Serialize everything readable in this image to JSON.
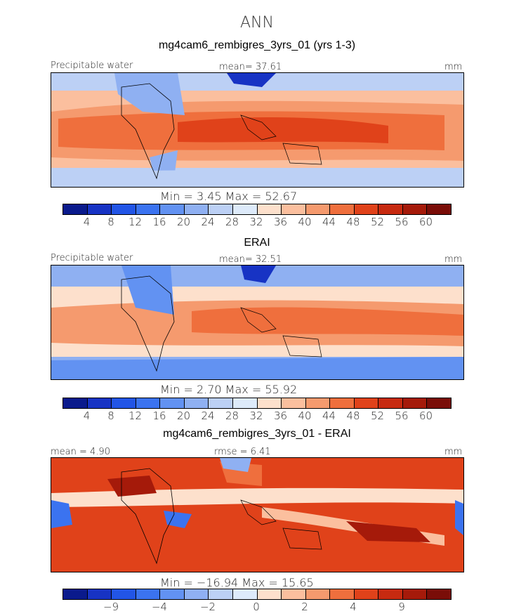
{
  "main_title": "ANN",
  "colors": {
    "abs_scale": [
      "#0a1a8c",
      "#1733c4",
      "#2255e6",
      "#3b73f0",
      "#6292f2",
      "#8fb0f2",
      "#bcd0f5",
      "#ddeafa",
      "#fde0cc",
      "#fbbf9e",
      "#f59a6e",
      "#ef6f3d",
      "#e0421a",
      "#c72a10",
      "#a51a0a",
      "#7a0d08"
    ],
    "diff_scale": [
      "#0a1a8c",
      "#1733c4",
      "#2255e6",
      "#3b73f0",
      "#6292f2",
      "#8fb0f2",
      "#bcd0f5",
      "#ddeafa",
      "#fde0cc",
      "#fbbf9e",
      "#f59a6e",
      "#ef6f3d",
      "#e0421a",
      "#c72a10",
      "#a51a0a",
      "#7a0d08"
    ]
  },
  "panels": [
    {
      "title": "mg4cam6_rembigres_3yrs_01 (yrs 1-3)",
      "left_label": "Precipitable water",
      "center_label": "mean=  37.61",
      "right_label": "mm",
      "stats": "Min =    3.45  Max =   52.67",
      "ticks": [
        "4",
        "8",
        "12",
        "16",
        "20",
        "24",
        "28",
        "32",
        "36",
        "40",
        "44",
        "48",
        "52",
        "56",
        "60"
      ]
    },
    {
      "title": "ERAI",
      "left_label": "Precipitable water",
      "center_label": "mean=  32.51",
      "right_label": "mm",
      "stats": "Min =    2.70  Max =   55.92",
      "ticks": [
        "4",
        "8",
        "12",
        "16",
        "20",
        "24",
        "28",
        "32",
        "36",
        "40",
        "44",
        "48",
        "52",
        "56",
        "60"
      ]
    },
    {
      "title": "mg4cam6_rembigres_3yrs_01 - ERAI",
      "left_label": "mean =    4.90",
      "center_label": "rmse =    6.41",
      "right_label": "mm",
      "stats": "Min = −16.94  Max =   15.65",
      "ticks": [
        "−9",
        "−4",
        "−2",
        "0",
        "2",
        "4",
        "9"
      ]
    }
  ]
}
